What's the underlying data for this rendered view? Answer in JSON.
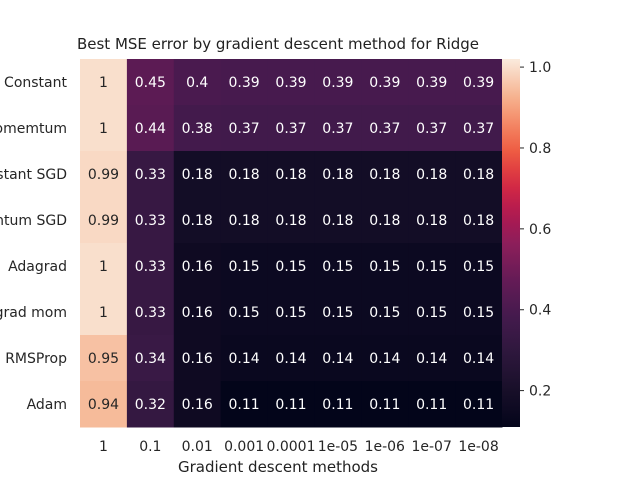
{
  "chart_data": {
    "type": "heatmap",
    "title": "Best MSE error by gradient descent method for Ridge",
    "xlabel": "Gradient descent methods",
    "ylabel": "",
    "x_tick_labels": [
      "1",
      "0.1",
      "0.01",
      "0.001",
      "0.0001",
      "1e-05",
      "1e-06",
      "1e-07",
      "1e-08"
    ],
    "y_tick_labels": [
      "Constant",
      "omemtum",
      "stant SGD",
      "ntum SGD",
      "Adagrad",
      "grad mom",
      "RMSProp",
      "Adam"
    ],
    "values": [
      [
        1,
        0.45,
        0.4,
        0.39,
        0.39,
        0.39,
        0.39,
        0.39,
        0.39
      ],
      [
        1,
        0.44,
        0.38,
        0.37,
        0.37,
        0.37,
        0.37,
        0.37,
        0.37
      ],
      [
        0.99,
        0.33,
        0.18,
        0.18,
        0.18,
        0.18,
        0.18,
        0.18,
        0.18
      ],
      [
        0.99,
        0.33,
        0.18,
        0.18,
        0.18,
        0.18,
        0.18,
        0.18,
        0.18
      ],
      [
        1,
        0.33,
        0.16,
        0.15,
        0.15,
        0.15,
        0.15,
        0.15,
        0.15
      ],
      [
        1,
        0.33,
        0.16,
        0.15,
        0.15,
        0.15,
        0.15,
        0.15,
        0.15
      ],
      [
        0.95,
        0.34,
        0.16,
        0.14,
        0.14,
        0.14,
        0.14,
        0.14,
        0.14
      ],
      [
        0.94,
        0.32,
        0.16,
        0.11,
        0.11,
        0.11,
        0.11,
        0.11,
        0.11
      ]
    ],
    "colorbar": {
      "range": [
        0.11,
        1.02
      ],
      "ticks": [
        0.2,
        0.4,
        0.6,
        0.8,
        1.0
      ],
      "tick_labels": [
        "0.2",
        "0.4",
        "0.6",
        "0.8",
        "1.0"
      ]
    },
    "colormap": "rocket",
    "annotate_cells": true,
    "grid": false
  }
}
